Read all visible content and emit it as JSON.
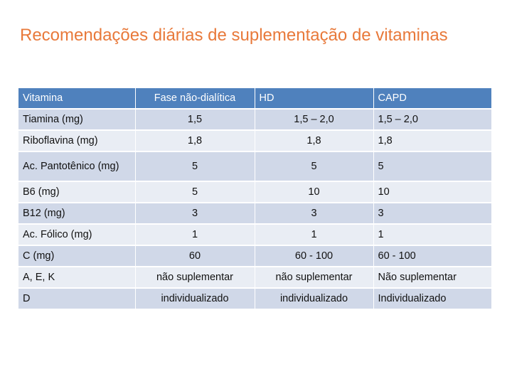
{
  "title": "Recomendações diárias de suplementação de vitaminas",
  "table": {
    "headers": [
      "Vitamina",
      "Fase não-dialítica",
      "HD",
      "CAPD"
    ],
    "rows": [
      [
        "Tiamina (mg)",
        "1,5",
        "1,5 – 2,0",
        "1,5 – 2,0"
      ],
      [
        "Riboflavina (mg)",
        "1,8",
        "1,8",
        "1,8"
      ],
      [
        "Ac. Pantotênico (mg)",
        "5",
        "5",
        "5"
      ],
      [
        "B6 (mg)",
        "5",
        "10",
        "10"
      ],
      [
        "B12 (mg)",
        "3",
        "3",
        "3"
      ],
      [
        "Ac. Fólico (mg)",
        "1",
        "1",
        "1"
      ],
      [
        "C (mg)",
        "60",
        "60 - 100",
        "60 - 100"
      ],
      [
        "A, E, K",
        "não suplementar",
        "não suplementar",
        "Não suplementar"
      ],
      [
        "D",
        "individualizado",
        "individualizado",
        "Individualizado"
      ]
    ]
  }
}
